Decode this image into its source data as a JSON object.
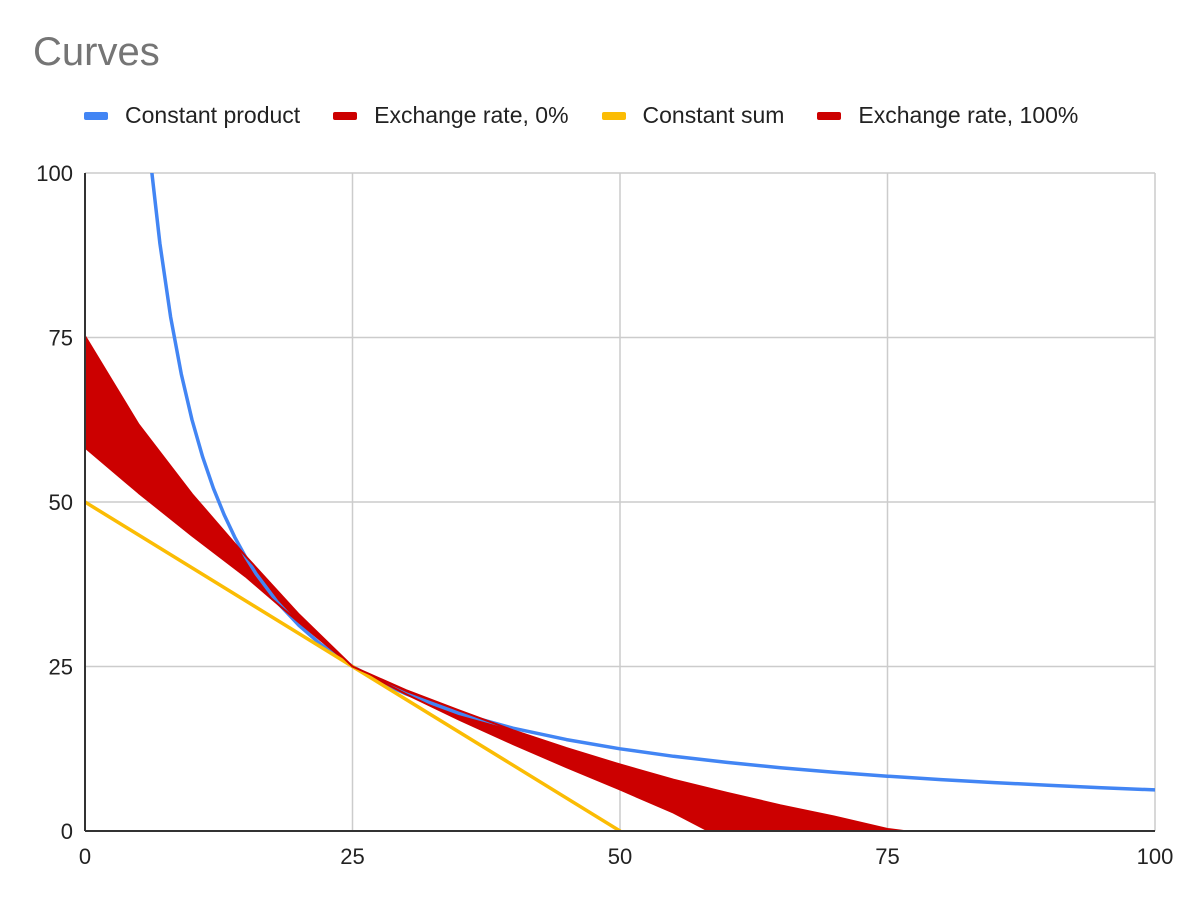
{
  "chart_data": {
    "type": "line",
    "title": "Curves",
    "xlabel": "",
    "ylabel": "",
    "xlim": [
      0,
      100
    ],
    "ylim": [
      0,
      100
    ],
    "x_ticks": [
      "0",
      "25",
      "50",
      "75",
      "100"
    ],
    "y_ticks": [
      "0",
      "25",
      "50",
      "75",
      "100"
    ],
    "grid": true,
    "legend_position": "top",
    "series": [
      {
        "name": "Constant product",
        "color": "#4285f4",
        "x": [
          6.25,
          7,
          8,
          9,
          10,
          11,
          12,
          13,
          14,
          15,
          16,
          18,
          20,
          22,
          25,
          28,
          30,
          35,
          40,
          45,
          50,
          55,
          60,
          65,
          70,
          75,
          80,
          85,
          90,
          95,
          100
        ],
        "y": [
          100,
          89.29,
          78.13,
          69.44,
          62.5,
          56.82,
          52.08,
          48.08,
          44.64,
          41.67,
          39.06,
          34.72,
          31.25,
          28.41,
          25,
          22.32,
          20.83,
          17.86,
          15.63,
          13.89,
          12.5,
          11.36,
          10.42,
          9.62,
          8.93,
          8.33,
          7.81,
          7.35,
          6.94,
          6.58,
          6.25
        ]
      },
      {
        "name": "Exchange rate, 0%",
        "color": "#cc0000",
        "x": [
          0,
          5,
          10,
          15,
          20,
          25,
          30,
          35,
          40,
          45,
          50,
          55,
          58.3
        ],
        "y": [
          58.3,
          51.4,
          44.9,
          38.7,
          31.7,
          25,
          20.8,
          16.9,
          13.2,
          9.7,
          6.3,
          2.8,
          0
        ]
      },
      {
        "name": "Constant sum",
        "color": "#fbbc04",
        "x": [
          0,
          50
        ],
        "y": [
          50,
          0
        ]
      },
      {
        "name": "Exchange rate, 100%",
        "color": "#cc0000",
        "x": [
          0,
          5,
          10,
          15,
          20,
          25,
          30,
          35,
          40,
          45,
          50,
          55,
          60,
          65,
          70,
          75,
          76.5
        ],
        "y": [
          75.2,
          61.8,
          51.2,
          41.8,
          32.9,
          25,
          21.4,
          18.3,
          15.3,
          12.6,
          10.1,
          7.8,
          5.8,
          3.9,
          2.2,
          0.3,
          0
        ]
      }
    ]
  }
}
